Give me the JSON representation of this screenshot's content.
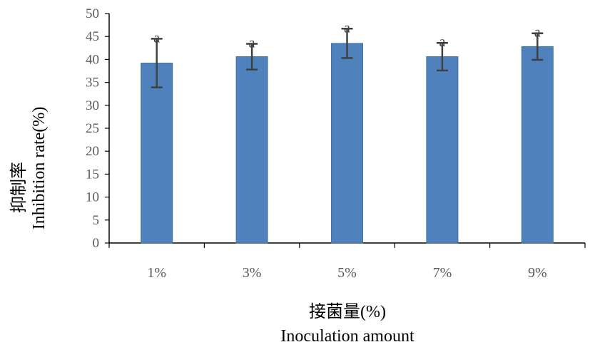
{
  "chart_data": {
    "type": "bar",
    "categories": [
      "1%",
      "3%",
      "5%",
      "7%",
      "9%"
    ],
    "series": [
      {
        "values": [
          39.2,
          40.6,
          43.5,
          40.6,
          42.8
        ],
        "errors": [
          5.3,
          2.8,
          3.2,
          3.0,
          2.9
        ],
        "color": "#4F81BD"
      }
    ],
    "significance": [
      "a",
      "a",
      "a",
      "a",
      "a"
    ],
    "xlabel_zh": "接菌量(%)",
    "xlabel_en": "Inoculation amount",
    "ylabel_zh": "抑制率",
    "ylabel_en": "Inhibition rate(%)",
    "ylim": [
      0,
      50
    ],
    "yticks": [
      "0",
      "5",
      "10",
      "15",
      "20",
      "25",
      "30",
      "35",
      "40",
      "45",
      "50"
    ],
    "grid": false,
    "legend": "none"
  }
}
